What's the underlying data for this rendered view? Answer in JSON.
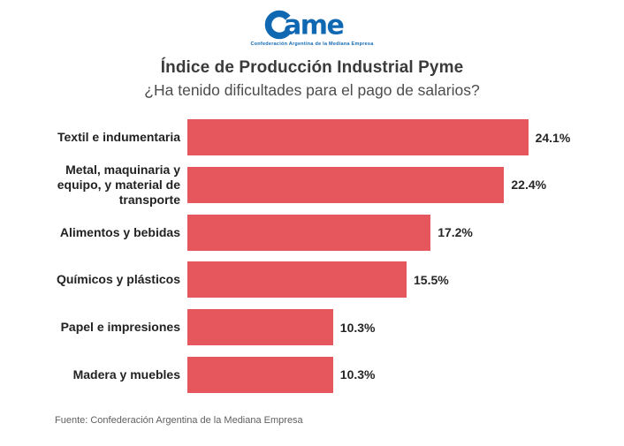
{
  "logo": {
    "name": "Came",
    "letters_after_c": "ame",
    "tagline": "Confederación Argentina de la Mediana Empresa",
    "color": "#1068b3"
  },
  "header": {
    "title": "Índice de Producción Industrial Pyme",
    "subtitle": "¿Ha tenido dificultades para el pago de salarios?"
  },
  "chart_data": {
    "type": "bar",
    "orientation": "horizontal",
    "categories": [
      "Textil e indumentaria",
      "Metal, maquinaria y\nequipo, y material de\ntransporte",
      "Alimentos y bebidas",
      "Químicos y plásticos",
      "Papel e impresiones",
      "Madera y muebles"
    ],
    "values": [
      24.1,
      22.4,
      17.2,
      15.5,
      10.3,
      10.3
    ],
    "value_labels": [
      "24.1%",
      "22.4%",
      "17.2%",
      "15.5%",
      "10.3%",
      "10.3%"
    ],
    "bar_color": "#e5575c",
    "xlim": [
      0,
      25
    ],
    "grid": false,
    "legend": "none",
    "value_label_position": "outside-right"
  },
  "footer": {
    "source": "Fuente: Confederación Argentina de la Mediana Empresa"
  }
}
